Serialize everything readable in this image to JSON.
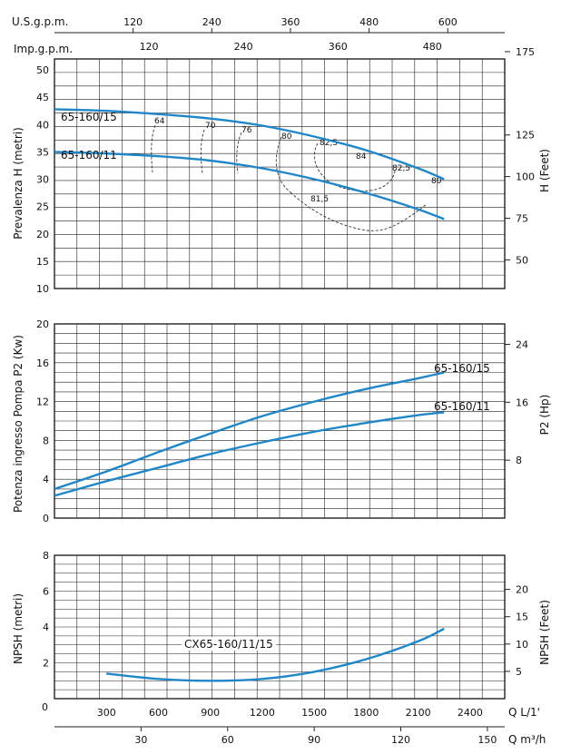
{
  "colors": {
    "curve": "#1f86c8",
    "grid": "#222222",
    "eff": "#333333",
    "text": "#111111"
  },
  "top_axes": {
    "us_label": "U.S.g.p.m.",
    "us_ticks": [
      "120",
      "240",
      "360",
      "480",
      "600"
    ],
    "imp_label": "Imp.g.p.m.",
    "imp_ticks": [
      "120",
      "240",
      "360",
      "480"
    ]
  },
  "bottom_axes": {
    "lmin_label": "Q L/1'",
    "lmin_ticks": [
      "300",
      "600",
      "900",
      "1200",
      "1500",
      "1800",
      "2100",
      "2400"
    ],
    "m3h_label": "Q m³/h",
    "m3h_ticks": [
      "30",
      "60",
      "90",
      "120",
      "150"
    ],
    "zero": "0"
  },
  "chart_data": [
    {
      "type": "line",
      "ylabel": "Prevalenza H (metri)",
      "y2label": "H (Feet)",
      "xunit": "L/min",
      "xlim": [
        0,
        2600
      ],
      "ylim": [
        10,
        52
      ],
      "yticks": [
        "10",
        "15",
        "20",
        "25",
        "30",
        "35",
        "40",
        "45",
        "50"
      ],
      "y2ticks": [
        "50",
        "75",
        "100",
        "125",
        "175"
      ],
      "series": [
        {
          "name": "65-160/15",
          "x": [
            0,
            300,
            600,
            900,
            1200,
            1500,
            1800,
            2100,
            2250
          ],
          "y": [
            42.8,
            42.5,
            41.9,
            41.1,
            39.8,
            37.8,
            35.3,
            32.0,
            30.0
          ]
        },
        {
          "name": "65-160/11",
          "x": [
            0,
            300,
            600,
            900,
            1200,
            1500,
            1800,
            2100,
            2250
          ],
          "y": [
            35.0,
            34.7,
            34.2,
            33.4,
            32.0,
            30.0,
            27.5,
            24.5,
            22.7
          ]
        }
      ],
      "efficiency_labels": [
        "64",
        "70",
        "76",
        "80",
        "82,5",
        "84",
        "82,5",
        "80",
        "81,5"
      ]
    },
    {
      "type": "line",
      "ylabel": "Potenza ingresso Pompa P2 (Kw)",
      "y2label": "P2 (Hp)",
      "xunit": "L/min",
      "xlim": [
        0,
        2600
      ],
      "ylim": [
        0,
        20
      ],
      "yticks": [
        "0",
        "4",
        "8",
        "12",
        "16",
        "20"
      ],
      "y2ticks": [
        "8",
        "16",
        "24"
      ],
      "series": [
        {
          "name": "65-160/15",
          "x": [
            0,
            300,
            600,
            900,
            1200,
            1500,
            1800,
            2100,
            2250
          ],
          "y": [
            3.0,
            4.8,
            6.8,
            8.7,
            10.5,
            12.0,
            13.3,
            14.4,
            15.0
          ]
        },
        {
          "name": "65-160/11",
          "x": [
            0,
            300,
            600,
            900,
            1200,
            1500,
            1800,
            2100,
            2250
          ],
          "y": [
            2.3,
            3.8,
            5.2,
            6.6,
            7.8,
            8.9,
            9.8,
            10.6,
            10.9
          ]
        }
      ]
    },
    {
      "type": "line",
      "ylabel": "NPSH (metri)",
      "y2label": "NPSH (Feet)",
      "xunit": "L/min",
      "xlim": [
        0,
        2600
      ],
      "ylim": [
        0,
        8
      ],
      "yticks": [
        "2",
        "4",
        "6",
        "8"
      ],
      "y2ticks": [
        "5",
        "10",
        "15",
        "20"
      ],
      "series": [
        {
          "name": "CX65-160/11/15",
          "x": [
            300,
            600,
            900,
            1200,
            1500,
            1800,
            2100,
            2250
          ],
          "y": [
            1.4,
            1.1,
            1.0,
            1.1,
            1.5,
            2.2,
            3.2,
            3.9
          ]
        }
      ]
    }
  ]
}
